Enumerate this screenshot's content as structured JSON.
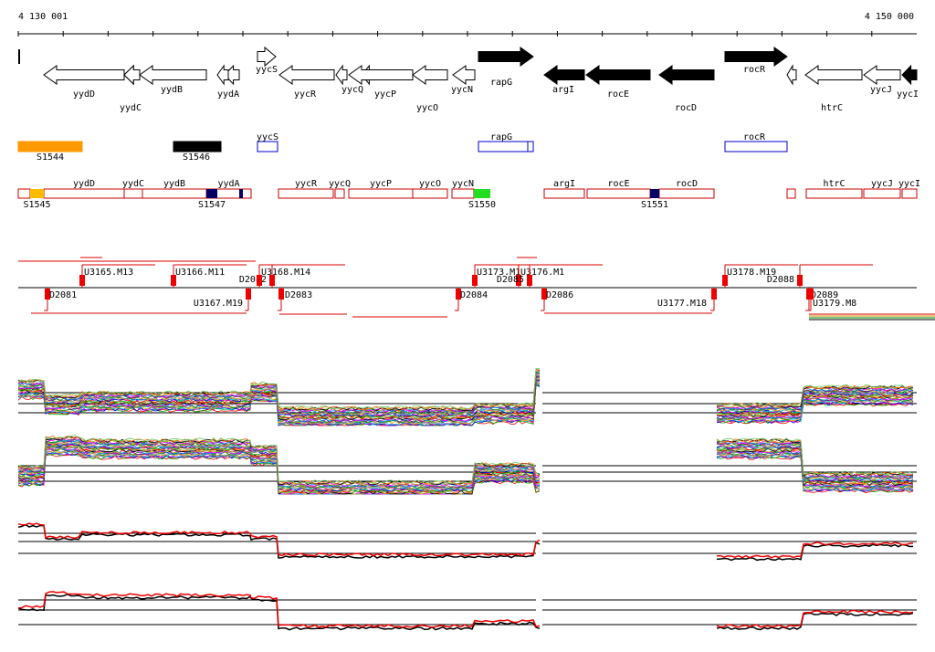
{
  "ruler": {
    "start": "4 130 001",
    "end": "4 150 000"
  },
  "genes": [
    "yydD",
    "yydC",
    "yydB",
    "yydA",
    "yycS",
    "yycR",
    "yycQ",
    "yycP",
    "yycO",
    "yycN",
    "rapG",
    "argI",
    "rocE",
    "rocD",
    "rocR",
    "htrC",
    "yycJ",
    "yycI"
  ],
  "segments": [
    "S1544",
    "S1546",
    "yycS",
    "rapG",
    "rocR"
  ],
  "segments2": [
    "S1545",
    "yydD",
    "yydC",
    "yydB",
    "yydA",
    "S1547",
    "yycR",
    "yycQ",
    "yycP",
    "yycO",
    "yycN",
    "S1550",
    "argI",
    "rocE",
    "rocD",
    "S1551",
    "htrC",
    "yycJ",
    "yycI"
  ],
  "transcripts": [
    "U3165.M13",
    "U3166.M11",
    "D2082",
    "U3168.M14",
    "U3173.M1",
    "U3176.M1",
    "D2085",
    "U3178.M19",
    "D2088",
    "D2081",
    "U3167.M19",
    "D2083",
    "D2084",
    "D2086",
    "U3177.M18",
    "D2089",
    "U3179.M8"
  ]
}
